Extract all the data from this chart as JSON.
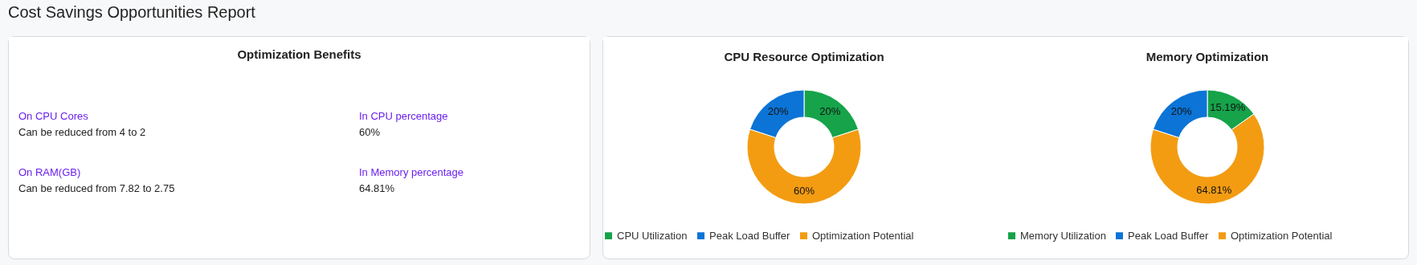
{
  "chart_data": [
    {
      "type": "other",
      "title": "Cost Savings Opportunities Report",
      "subtitle": "Optimization Benefits",
      "annotations": [
        "On CPU Cores",
        "Can be reduced from 4 to 2",
        "In CPU percentage",
        "60%",
        "On RAM(GB)",
        "Can be reduced from 7.82 to 2.75",
        "In Memory percentage",
        "64.81%"
      ]
    },
    {
      "type": "donut",
      "title": "CPU Resource Optimization",
      "categories": [
        "CPU Utilization",
        "Peak Load Buffer",
        "Optimization Potential"
      ],
      "values": [
        20,
        20,
        60
      ],
      "colors": [
        "#16a34a",
        "#0b74d6",
        "#f39c12"
      ],
      "value_labels": [
        "20%",
        "20%",
        "60%"
      ],
      "legend": "bottom"
    },
    {
      "type": "donut",
      "title": "Memory Optimization",
      "categories": [
        "Memory Utilization",
        "Peak Load Buffer",
        "Optimization Potential"
      ],
      "values": [
        15.19,
        20,
        64.81
      ],
      "colors": [
        "#16a34a",
        "#0b74d6",
        "#f39c12"
      ],
      "value_labels": [
        "15.19%",
        "20%",
        "64.81%"
      ],
      "legend": "bottom"
    }
  ]
}
